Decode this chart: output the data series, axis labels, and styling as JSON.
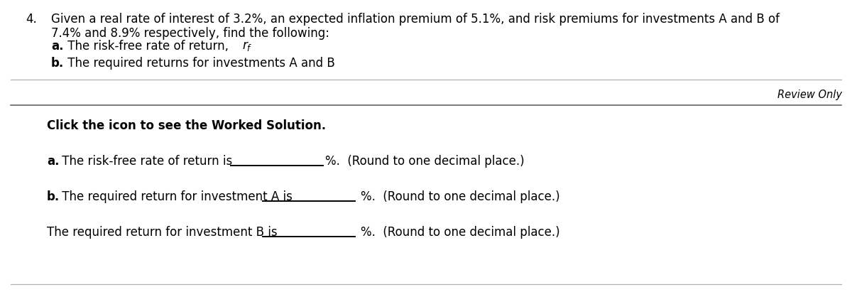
{
  "bg_color": "#ffffff",
  "text_color": "#000000",
  "q_number": "4.",
  "q_line1": "Given a real rate of interest of 3.2%, an expected inflation premium of 5.1%, and risk premiums for investments A and B of",
  "q_line2": "7.4% and 8.9% respectively, find the following:",
  "qa_bold": "a.",
  "qa_text": " The risk-free rate of return, ",
  "qa_math": "$r_f$",
  "qb_bold": "b.",
  "qb_text": " The required returns for investments A and B",
  "review_only": "Review Only",
  "click_text": "Click the icon to see the Worked Solution.",
  "ans_a_bold": "a.",
  "ans_a_text": " The risk-free rate of return is",
  "ans_a_suffix": "%.  (Round to one decimal place.)",
  "ans_b_bold": "b.",
  "ans_b_text": " The required return for investment A is",
  "ans_b_suffix": "%.  (Round to one decimal place.)",
  "ans_c_text": "The required return for investment B is",
  "ans_c_suffix": "%.  (Round to one decimal place.)",
  "fs_main": 12.0,
  "fs_review": 10.5,
  "line_color_light": "#b0b0b0",
  "line_color_dark": "#555555",
  "underline_color": "#000000"
}
